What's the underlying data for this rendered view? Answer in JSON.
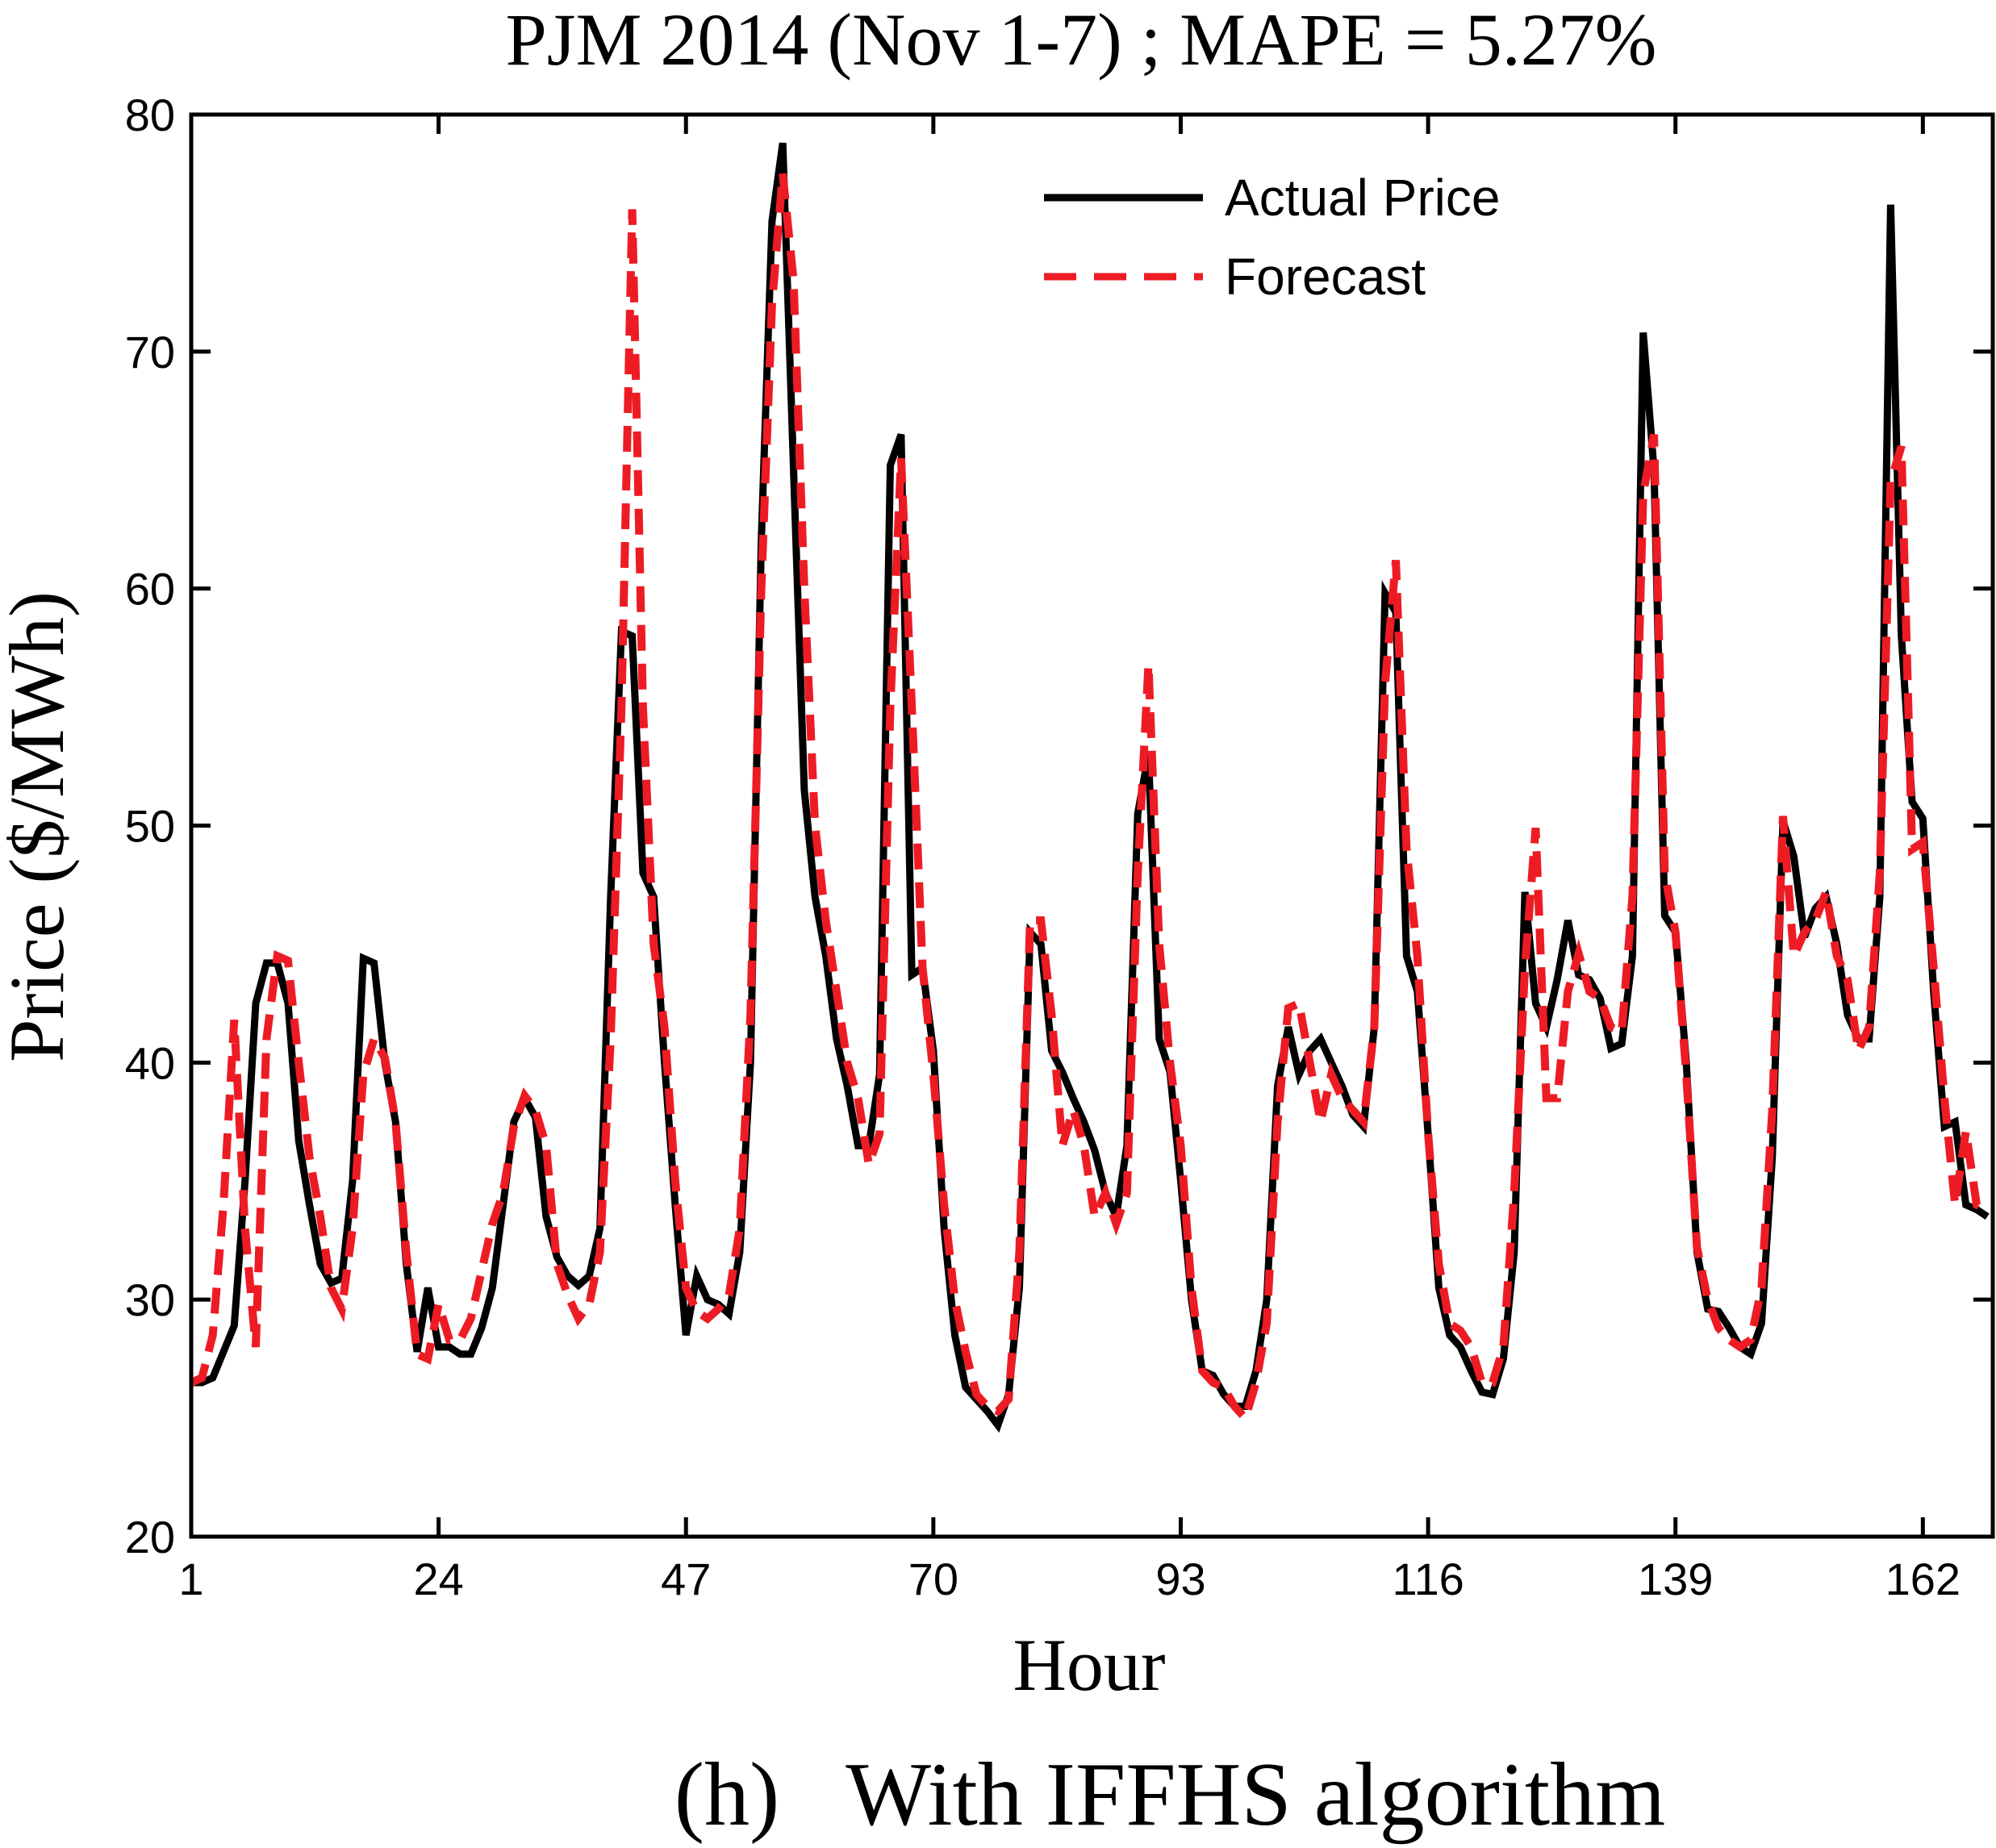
{
  "chart_data": {
    "type": "line",
    "title": "PJM 2014 (Nov 1-7) ; MAPE = 5.27%",
    "xlabel": "Hour",
    "ylabel": "Price ($/MWh)",
    "caption": "(h)   With IFFHS algorithm",
    "xlim": [
      1,
      168.5
    ],
    "ylim": [
      20,
      80
    ],
    "xticks": [
      1,
      24,
      47,
      70,
      93,
      116,
      139,
      162
    ],
    "yticks": [
      20,
      30,
      40,
      50,
      60,
      70,
      80
    ],
    "grid": false,
    "legend_position": "top-right",
    "series": [
      {
        "name": "Actual Price",
        "color": "#000000",
        "style": "solid",
        "values": [
          26.5,
          26.5,
          26.7,
          27.8,
          28.9,
          35,
          42.5,
          44.2,
          44.2,
          42.5,
          36.7,
          34,
          31.5,
          30.7,
          30.9,
          35,
          44.4,
          44.2,
          40,
          37.5,
          31.5,
          27.8,
          30.5,
          28,
          28,
          27.7,
          27.7,
          28.8,
          30.5,
          34,
          37.5,
          38.5,
          37.7,
          33.5,
          31.8,
          31,
          30.6,
          31,
          33,
          47,
          58.2,
          58,
          48,
          47,
          40,
          34,
          28.5,
          31,
          30,
          29.8,
          29.4,
          32,
          40,
          62,
          75.5,
          78.8,
          65,
          51.5,
          47,
          44.5,
          41,
          39,
          36.5,
          36.5,
          39.5,
          65.2,
          66.5,
          43.7,
          44,
          40.5,
          33,
          28.5,
          26.3,
          25.8,
          25.3,
          24.7,
          26,
          30.5,
          45.5,
          45,
          40.5,
          39.6,
          38.5,
          37.5,
          36.3,
          34.5,
          33.5,
          36.5,
          50.5,
          53,
          41,
          39.6,
          35,
          30,
          27,
          26.8,
          26,
          25.5,
          25.5,
          27,
          30,
          39,
          41.5,
          39.5,
          40.5,
          41,
          40,
          39,
          37.8,
          37.3,
          41.5,
          59.8,
          59,
          44.5,
          43,
          37,
          30.5,
          28.5,
          28,
          27,
          26.1,
          26,
          27.5,
          32,
          47.2,
          42.5,
          41.5,
          43.5,
          46,
          43.7,
          43.5,
          42.7,
          40.6,
          40.8,
          44.5,
          70.8,
          65,
          46.2,
          45.5,
          40,
          32,
          29.6,
          29.5,
          28.8,
          28,
          27.7,
          29,
          36,
          50.2,
          48.7,
          45.3,
          46.5,
          47,
          45,
          42,
          41,
          41,
          47,
          76.2,
          58,
          51,
          50.3,
          43,
          37.3,
          37.5,
          34,
          33.8,
          33.5
        ]
      },
      {
        "name": "Forecast",
        "color": "#ed1c24",
        "style": "dashed",
        "values": [
          26.5,
          26.7,
          28.5,
          34,
          41.8,
          33,
          28,
          41,
          44.5,
          44.3,
          40,
          36,
          33.5,
          30.5,
          29.6,
          33,
          39.5,
          41,
          40.2,
          37.5,
          32,
          27.7,
          27.5,
          29.8,
          28.3,
          28.3,
          29.2,
          31.2,
          33.2,
          34.5,
          37.3,
          38.6,
          38,
          36.5,
          31.5,
          30.2,
          29.2,
          29.8,
          32,
          41,
          55,
          76,
          55,
          45,
          41.5,
          35,
          30.5,
          29.5,
          29.2,
          29.6,
          30.2,
          33,
          42,
          60,
          72,
          77.5,
          73,
          60,
          50,
          46,
          43,
          40,
          38.5,
          35.7,
          37,
          55,
          65.5,
          55,
          44,
          39.5,
          34,
          30,
          27.8,
          26,
          25.5,
          25.3,
          25.8,
          32,
          46,
          46,
          42,
          36.5,
          38,
          36.5,
          33.5,
          34.5,
          33.2,
          34.5,
          48,
          56.8,
          45,
          40,
          36.5,
          30.5,
          27,
          26.5,
          26.3,
          25.5,
          25,
          26.5,
          29,
          37.5,
          42.3,
          42.5,
          40,
          37.5,
          39.5,
          38.5,
          38,
          37.5,
          41.5,
          56,
          61.2,
          49,
          44.5,
          37,
          31.5,
          29,
          28.7,
          28,
          26.5,
          26.5,
          28,
          34.5,
          44,
          49.9,
          38.5,
          38.5,
          43,
          44.6,
          43,
          42.7,
          41.5,
          41.3,
          47,
          64,
          66.5,
          48,
          45.5,
          39.5,
          32.2,
          30,
          28.8,
          28.3,
          28,
          28.3,
          30.5,
          38,
          50.4,
          44.5,
          45.5,
          46,
          47.2,
          44.5,
          43.5,
          40.5,
          41.5,
          48,
          64.5,
          66,
          49,
          49.3,
          44,
          38.5,
          34,
          37.1,
          34,
          33.8
        ]
      }
    ]
  }
}
